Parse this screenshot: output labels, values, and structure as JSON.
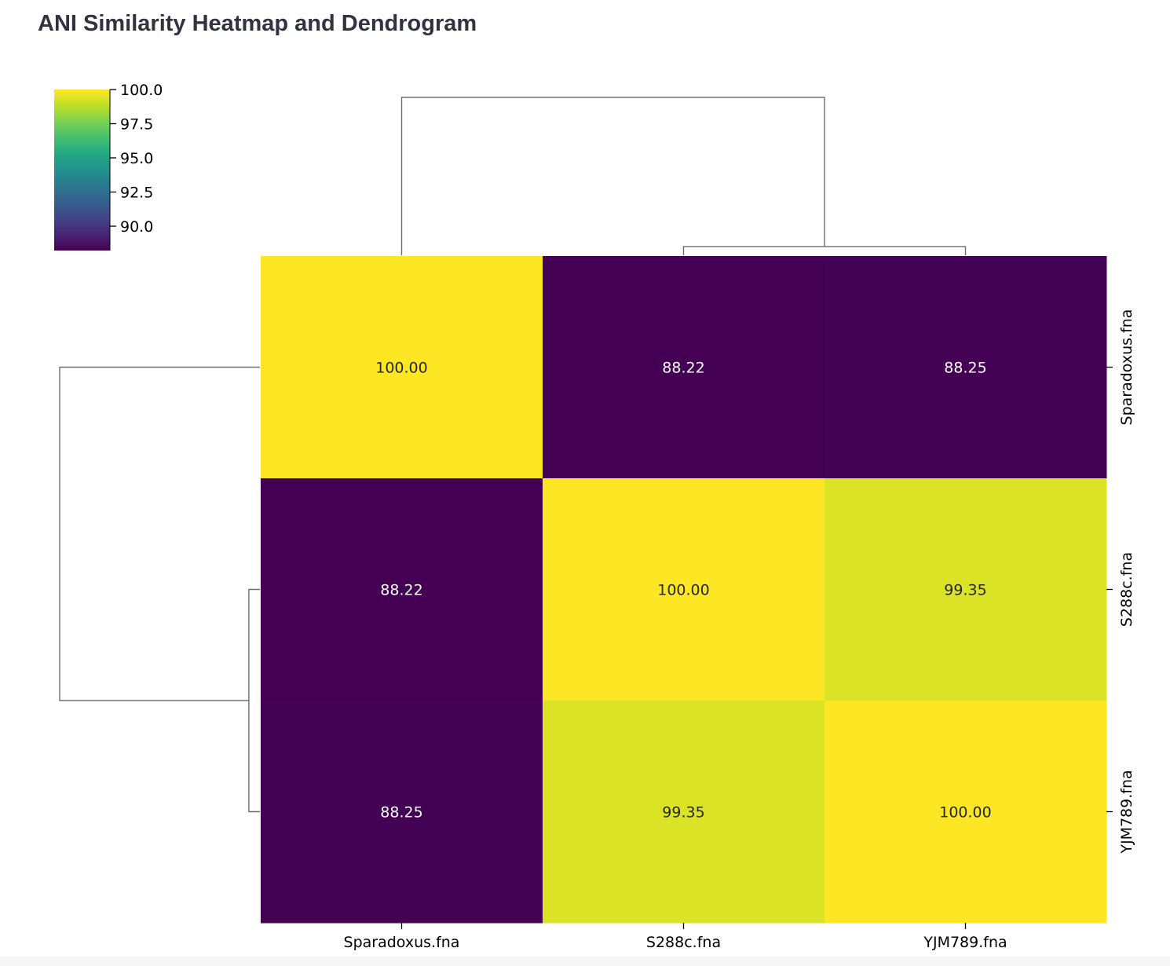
{
  "page": {
    "title": "ANI Similarity Heatmap and Dendrogram"
  },
  "chart_data": {
    "type": "heatmap",
    "rows": [
      "Sparadoxus.fna",
      "S288c.fna",
      "YJM789.fna"
    ],
    "columns": [
      "Sparadoxus.fna",
      "S288c.fna",
      "YJM789.fna"
    ],
    "values": [
      [
        100.0,
        88.22,
        88.25
      ],
      [
        88.22,
        100.0,
        99.35
      ],
      [
        88.25,
        99.35,
        100.0
      ]
    ],
    "value_labels": [
      [
        "100.00",
        "88.22",
        "88.25"
      ],
      [
        "88.22",
        "100.00",
        "99.35"
      ],
      [
        "88.25",
        "99.35",
        "100.00"
      ]
    ],
    "colorscale": "viridis",
    "colorbar": {
      "range": [
        88.22,
        100.0
      ],
      "ticks": [
        100.0,
        97.5,
        95.0,
        92.5,
        90.0
      ],
      "tick_labels": [
        "100.0",
        "97.5",
        "95.0",
        "92.5",
        "90.0"
      ]
    },
    "dendrogram": {
      "linkage": "S288c.fna + YJM789.fna joined first, then Sparadoxus.fna",
      "merge_heights": [
        0.65,
        11.765
      ]
    },
    "grid": false
  }
}
